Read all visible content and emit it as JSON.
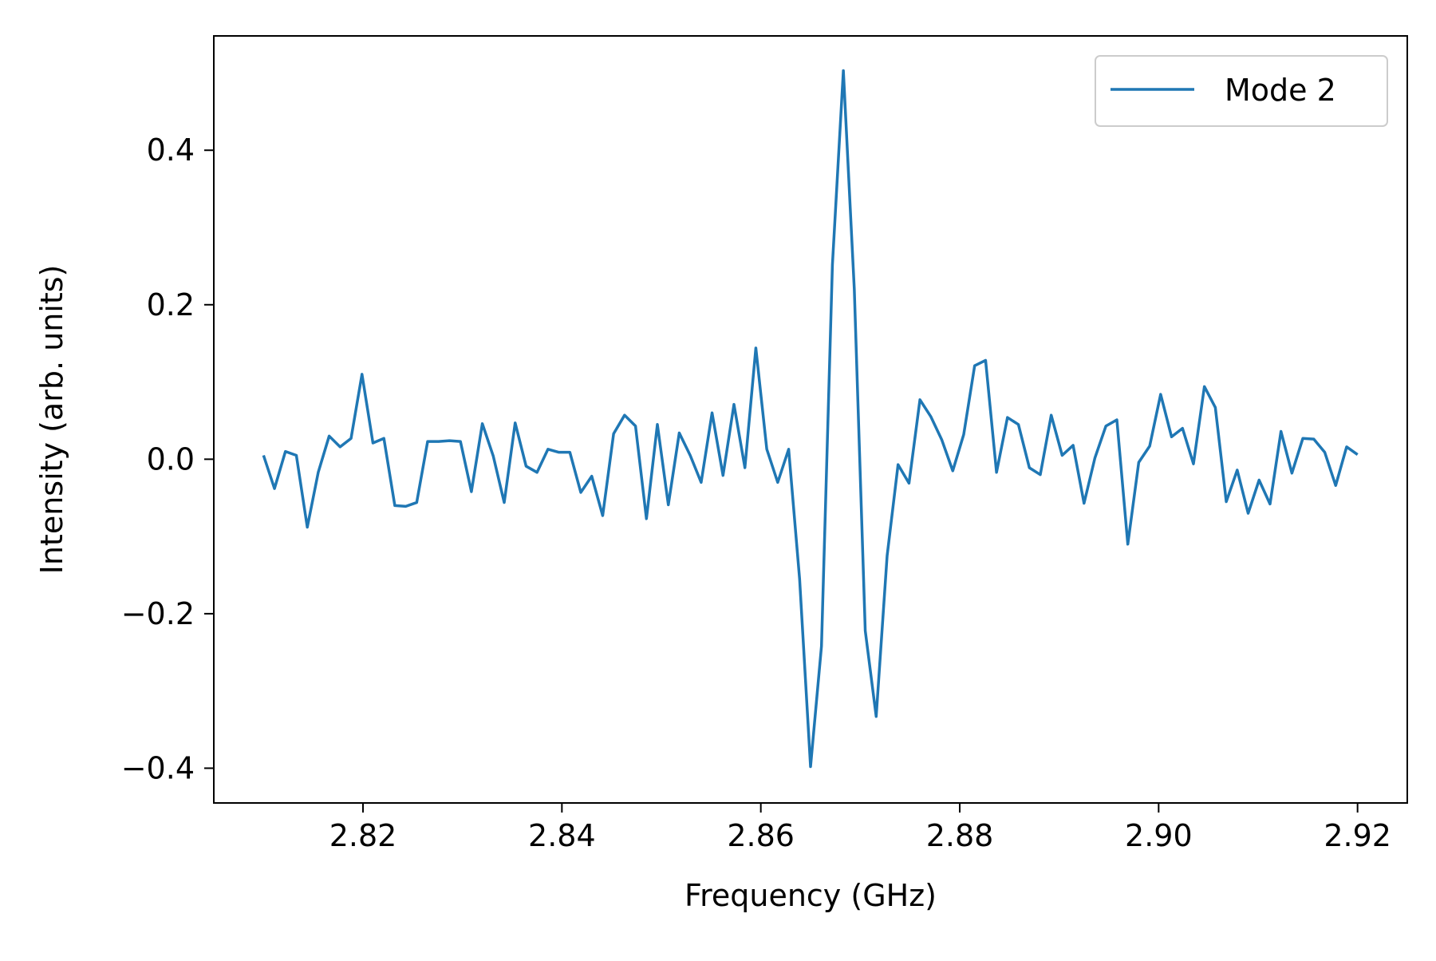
{
  "chart_data": {
    "type": "line",
    "xlabel": "Frequency (GHz)",
    "ylabel": "Intensity (arb. units)",
    "xlim": [
      2.805,
      2.925
    ],
    "ylim": [
      -0.445,
      0.548
    ],
    "xticks": [
      2.82,
      2.84,
      2.86,
      2.88,
      2.9,
      2.92
    ],
    "xtick_labels": [
      "2.82",
      "2.84",
      "2.86",
      "2.88",
      "2.90",
      "2.92"
    ],
    "yticks": [
      -0.4,
      -0.2,
      0.0,
      0.2,
      0.4
    ],
    "ytick_labels": [
      "−0.4",
      "−0.2",
      "0.0",
      "0.2",
      "0.4"
    ],
    "grid": false,
    "legend_position": "top-right",
    "line_color": "#1f77b4",
    "series": [
      {
        "name": "Mode 2",
        "x": [
          2.81,
          2.8111,
          2.8122,
          2.8133,
          2.8144,
          2.8155,
          2.8166,
          2.8177,
          2.8188,
          2.8199,
          2.821,
          2.8221,
          2.8232,
          2.8243,
          2.8254,
          2.8265,
          2.8276,
          2.8287,
          2.8298,
          2.8309,
          2.832,
          2.8331,
          2.8342,
          2.8353,
          2.8364,
          2.8375,
          2.8386,
          2.8397,
          2.8408,
          2.8419,
          2.843,
          2.8441,
          2.8452,
          2.8463,
          2.8474,
          2.8485,
          2.8496,
          2.8507,
          2.8518,
          2.8529,
          2.854,
          2.8551,
          2.8562,
          2.8573,
          2.8584,
          2.8595,
          2.8606,
          2.8617,
          2.8628,
          2.8639,
          2.865,
          2.8661,
          2.8672,
          2.8683,
          2.8694,
          2.8705,
          2.8716,
          2.8727,
          2.8738,
          2.8749,
          2.876,
          2.8771,
          2.8782,
          2.8793,
          2.8804,
          2.8815,
          2.8826,
          2.8837,
          2.8848,
          2.8859,
          2.887,
          2.8881,
          2.8892,
          2.8903,
          2.8914,
          2.8925,
          2.8936,
          2.8947,
          2.8958,
          2.8969,
          2.898,
          2.8991,
          2.9002,
          2.9013,
          2.9024,
          2.9035,
          2.9046,
          2.9057,
          2.9068,
          2.9079,
          2.909,
          2.9101,
          2.9112,
          2.9123,
          2.9134,
          2.9145,
          2.9156,
          2.9167,
          2.9178,
          2.9189,
          2.92
        ],
        "y": [
          0.005,
          -0.038,
          0.01,
          0.005,
          -0.088,
          -0.017,
          0.03,
          0.016,
          0.027,
          0.11,
          0.021,
          0.027,
          -0.06,
          -0.061,
          -0.056,
          0.023,
          0.023,
          0.024,
          0.023,
          -0.042,
          0.046,
          0.004,
          -0.056,
          0.047,
          -0.009,
          -0.017,
          0.013,
          0.009,
          0.009,
          -0.043,
          -0.022,
          -0.073,
          0.033,
          0.057,
          0.043,
          -0.077,
          0.045,
          -0.059,
          0.034,
          0.005,
          -0.03,
          0.06,
          -0.021,
          0.071,
          -0.011,
          0.144,
          0.013,
          -0.03,
          0.013,
          -0.155,
          -0.398,
          -0.242,
          0.252,
          0.503,
          0.22,
          -0.222,
          -0.333,
          -0.125,
          -0.007,
          -0.031,
          0.077,
          0.055,
          0.025,
          -0.015,
          0.032,
          0.121,
          0.128,
          -0.017,
          0.054,
          0.045,
          -0.011,
          -0.02,
          0.057,
          0.005,
          0.018,
          -0.057,
          0.002,
          0.043,
          0.051,
          -0.11,
          -0.004,
          0.017,
          0.084,
          0.029,
          0.04,
          -0.006,
          0.094,
          0.067,
          -0.055,
          -0.014,
          -0.07,
          -0.027,
          -0.058,
          0.036,
          -0.018,
          0.027,
          0.026,
          0.009,
          -0.034,
          0.016,
          0.006
        ]
      }
    ]
  }
}
